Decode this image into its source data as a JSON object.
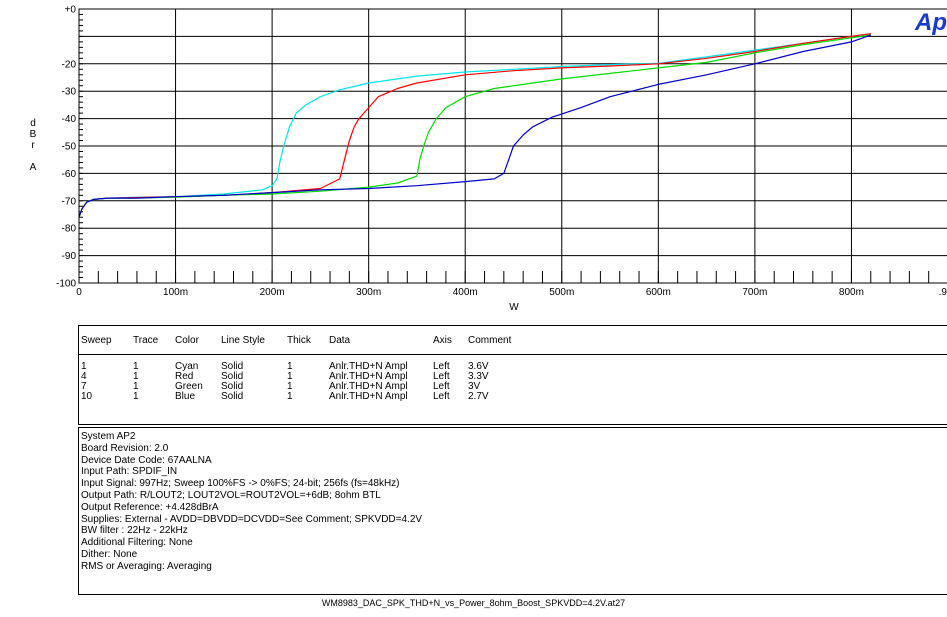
{
  "chart_data": {
    "type": "line",
    "title": "",
    "xlabel": "W",
    "ylabel_letters": [
      "d",
      "B",
      "r",
      "",
      "A"
    ],
    "xlim": [
      0,
      0.9
    ],
    "ylim": [
      -100,
      0
    ],
    "x_tick_values": [
      0,
      0.1,
      0.2,
      0.3,
      0.4,
      0.5,
      0.6,
      0.7,
      0.8,
      0.9
    ],
    "x_tick_labels": [
      "0",
      "100m",
      "200m",
      "300m",
      "400m",
      "500m",
      "600m",
      "700m",
      "800m",
      ".9"
    ],
    "y_tick_values": [
      0,
      -20,
      -30,
      -40,
      -50,
      -60,
      -70,
      -80,
      -90,
      -100
    ],
    "y_tick_labels": [
      "+0",
      "-20",
      "-30",
      "-40",
      "-50",
      "-60",
      "-70",
      "-80",
      "-90",
      "-100"
    ],
    "y_grid_values": [
      0,
      -10,
      -20,
      -30,
      -40,
      -50,
      -60,
      -70,
      -80,
      -90,
      -100
    ],
    "x_minor_step": 0.02,
    "grid": true,
    "series": [
      {
        "name": "3.6V",
        "color": "#00e5ee",
        "x": [
          0.0,
          0.003,
          0.008,
          0.015,
          0.03,
          0.06,
          0.1,
          0.15,
          0.19,
          0.2,
          0.205,
          0.208,
          0.212,
          0.218,
          0.225,
          0.235,
          0.25,
          0.27,
          0.3,
          0.35,
          0.4,
          0.45,
          0.5,
          0.55,
          0.6,
          0.65,
          0.7,
          0.75,
          0.8,
          0.82
        ],
        "y": [
          -76,
          -73,
          -70.5,
          -69.5,
          -69,
          -68.7,
          -68.5,
          -67.5,
          -66,
          -64.5,
          -62,
          -56,
          -50,
          -43,
          -38,
          -35,
          -32,
          -29.5,
          -27,
          -24.5,
          -23,
          -22,
          -21,
          -20.3,
          -19.8,
          -17.5,
          -15,
          -12.5,
          -10,
          -9
        ]
      },
      {
        "name": "3.3V",
        "color": "#ff0000",
        "x": [
          0.0,
          0.003,
          0.008,
          0.015,
          0.03,
          0.06,
          0.1,
          0.15,
          0.2,
          0.25,
          0.27,
          0.275,
          0.28,
          0.285,
          0.29,
          0.3,
          0.31,
          0.33,
          0.35,
          0.4,
          0.45,
          0.5,
          0.55,
          0.6,
          0.65,
          0.7,
          0.75,
          0.8,
          0.82
        ],
        "y": [
          -76,
          -73,
          -70.5,
          -69.5,
          -69,
          -68.8,
          -68.5,
          -68,
          -67,
          -65.5,
          -62,
          -55,
          -48,
          -43,
          -40,
          -36,
          -32,
          -29,
          -27,
          -24,
          -22.5,
          -21.5,
          -20.8,
          -20,
          -18,
          -15.5,
          -12.5,
          -10,
          -9
        ]
      },
      {
        "name": "3V",
        "color": "#00dd00",
        "x": [
          0.0,
          0.003,
          0.008,
          0.015,
          0.03,
          0.06,
          0.1,
          0.15,
          0.2,
          0.25,
          0.3,
          0.33,
          0.35,
          0.353,
          0.357,
          0.362,
          0.37,
          0.38,
          0.4,
          0.43,
          0.46,
          0.5,
          0.55,
          0.6,
          0.65,
          0.7,
          0.75,
          0.8,
          0.82
        ],
        "y": [
          -76,
          -73,
          -70.5,
          -69.5,
          -69,
          -69,
          -68.7,
          -68,
          -67.5,
          -66.5,
          -65,
          -63.5,
          -61,
          -55,
          -50,
          -45,
          -40,
          -36,
          -32,
          -29,
          -27.5,
          -25.5,
          -23.5,
          -21.5,
          -19.5,
          -16,
          -13,
          -10.5,
          -9.5
        ]
      },
      {
        "name": "2.7V",
        "color": "#0000cc",
        "x": [
          0.0,
          0.003,
          0.008,
          0.015,
          0.03,
          0.06,
          0.1,
          0.15,
          0.2,
          0.25,
          0.3,
          0.35,
          0.4,
          0.43,
          0.44,
          0.445,
          0.45,
          0.46,
          0.47,
          0.49,
          0.52,
          0.55,
          0.6,
          0.65,
          0.7,
          0.75,
          0.8,
          0.82
        ],
        "y": [
          -76,
          -73,
          -70.5,
          -69.5,
          -69,
          -69,
          -68.5,
          -68,
          -67,
          -66,
          -65.5,
          -64.5,
          -63,
          -62,
          -60,
          -55,
          -50,
          -46,
          -43,
          -39.5,
          -36,
          -32,
          -27.5,
          -24,
          -20,
          -15.5,
          -12,
          -9.5
        ]
      }
    ]
  },
  "logo_text": "Ap",
  "legend": {
    "headers": [
      "Sweep",
      "Trace",
      "Color",
      "Line Style",
      "Thick",
      "Data",
      "Axis",
      "Comment"
    ],
    "rows": [
      [
        "1",
        "1",
        "Cyan",
        "Solid",
        "1",
        "Anlr.THD+N Ampl",
        "Left",
        "3.6V"
      ],
      [
        "4",
        "1",
        "Red",
        "Solid",
        "1",
        "Anlr.THD+N Ampl",
        "Left",
        "3.3V"
      ],
      [
        "7",
        "1",
        "Green",
        "Solid",
        "1",
        "Anlr.THD+N Ampl",
        "Left",
        "3V"
      ],
      [
        "10",
        "1",
        "Blue",
        "Solid",
        "1",
        "Anlr.THD+N Ampl",
        "Left",
        "2.7V"
      ]
    ]
  },
  "info_lines": [
    "System AP2",
    "Board Revision: 2.0",
    "Device Date Code: 67AALNA",
    "Input Path: SPDIF_IN",
    "Input Signal: 997Hz; Sweep 100%FS -> 0%FS; 24-bit; 256fs (fs=48kHz)",
    "Output Path: R/LOUT2; LOUT2VOL=ROUT2VOL=+6dB; 8ohm BTL",
    "Output Reference: +4.428dBrA",
    "Supplies: External - AVDD=DBVDD=DCVDD=See Comment; SPKVDD=4.2V",
    "BW filter : 22Hz - 22kHz",
    "Additional Filtering: None",
    "Dither: None",
    "RMS or Averaging: Averaging"
  ],
  "footer": "WM8983_DAC_SPK_THD+N_vs_Power_8ohm_Boost_SPKVDD=4.2V.at27"
}
